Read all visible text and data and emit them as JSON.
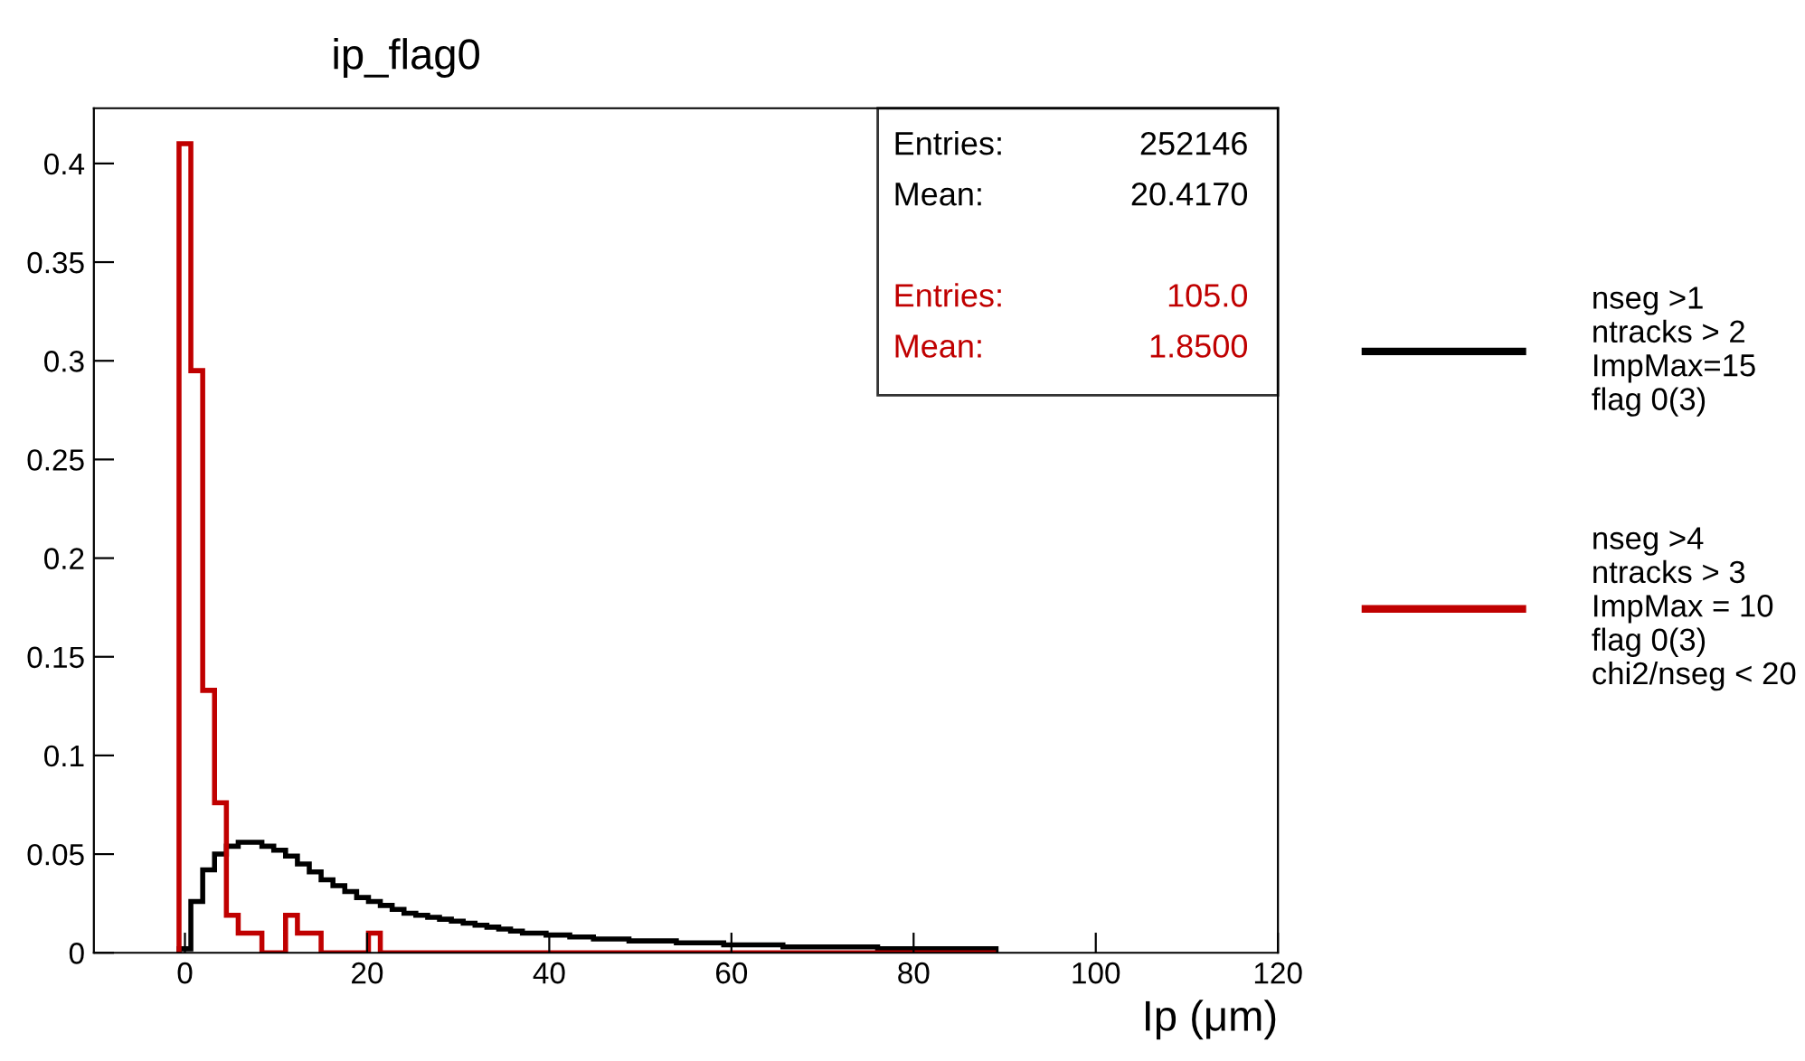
{
  "chart_data": {
    "type": "histogram",
    "title": "ip_flag0",
    "xlabel": "Ip (μm)",
    "xlim": [
      -10,
      120
    ],
    "xticks": [
      0,
      20,
      40,
      60,
      80,
      100,
      120
    ],
    "ylim": [
      0,
      0.428
    ],
    "yticks": [
      0,
      0.05,
      0.1,
      0.15,
      0.2,
      0.25,
      0.3,
      0.35,
      0.4
    ],
    "grid": false,
    "legend": "right",
    "annotations": [
      "Entries:",
      "252146",
      "Mean:",
      "20.4170",
      "Entries:",
      "105.0",
      "Mean:",
      "1.8500"
    ],
    "bins": [
      -0.65,
      0.65,
      1.95,
      3.25,
      4.55,
      5.85,
      7.15,
      8.45,
      9.75,
      11.05,
      12.35,
      13.65,
      14.95,
      16.25,
      17.55,
      18.85,
      20.15,
      21.45,
      22.75,
      24.05,
      25.35,
      26.65,
      27.95,
      29.25,
      30.55,
      31.85,
      33.15,
      34.45,
      35.75,
      37.05,
      38.35,
      39.65,
      40.95,
      42.25,
      43.55,
      44.85,
      46.15,
      47.45,
      48.75,
      50.05,
      51.35,
      52.65,
      53.95,
      55.25,
      56.55,
      57.85,
      59.15,
      60.45,
      61.75,
      63.05,
      64.35,
      65.65,
      66.95,
      68.25,
      69.55,
      70.85,
      72.15,
      73.45,
      74.75,
      76.05,
      77.35,
      78.65,
      79.95,
      81.25,
      82.55,
      83.85,
      85.15,
      86.45,
      87.75,
      89.05
    ],
    "series": [
      {
        "name": "nseg >1\nntracks > 2\nImpMax=15\nflag 0(3)",
        "color": "#000000",
        "values": [
          0.002,
          0.026,
          0.042,
          0.05,
          0.054,
          0.056,
          0.056,
          0.054,
          0.052,
          0.049,
          0.045,
          0.041,
          0.037,
          0.034,
          0.031,
          0.028,
          0.026,
          0.024,
          0.022,
          0.02,
          0.019,
          0.018,
          0.017,
          0.016,
          0.015,
          0.014,
          0.013,
          0.012,
          0.011,
          0.01,
          0.01,
          0.009,
          0.009,
          0.008,
          0.008,
          0.007,
          0.007,
          0.007,
          0.006,
          0.006,
          0.006,
          0.006,
          0.005,
          0.005,
          0.005,
          0.005,
          0.004,
          0.004,
          0.004,
          0.004,
          0.004,
          0.003,
          0.003,
          0.003,
          0.003,
          0.003,
          0.003,
          0.003,
          0.003,
          0.002,
          0.002,
          0.002,
          0.002,
          0.002,
          0.002,
          0.002,
          0.002,
          0.002,
          0.002
        ]
      },
      {
        "name": "nseg >4\nntracks > 3\nImpMax = 10\nflag 0(3)\nchi2/nseg < 20",
        "color": "#c00000",
        "values": [
          0.41,
          0.295,
          0.133,
          0.076,
          0.019,
          0.01,
          0.01,
          0,
          0,
          0.019,
          0.01,
          0.01,
          0,
          0,
          0,
          0,
          0.01,
          0,
          0,
          0,
          0,
          0,
          0,
          0,
          0,
          0,
          0,
          0,
          0,
          0,
          0,
          0,
          0,
          0,
          0,
          0,
          0,
          0,
          0,
          0,
          0,
          0,
          0,
          0,
          0,
          0,
          0,
          0,
          0,
          0,
          0,
          0,
          0,
          0,
          0,
          0,
          0,
          0,
          0,
          0,
          0,
          0,
          0,
          0,
          0,
          0,
          0,
          0,
          0
        ]
      }
    ]
  }
}
